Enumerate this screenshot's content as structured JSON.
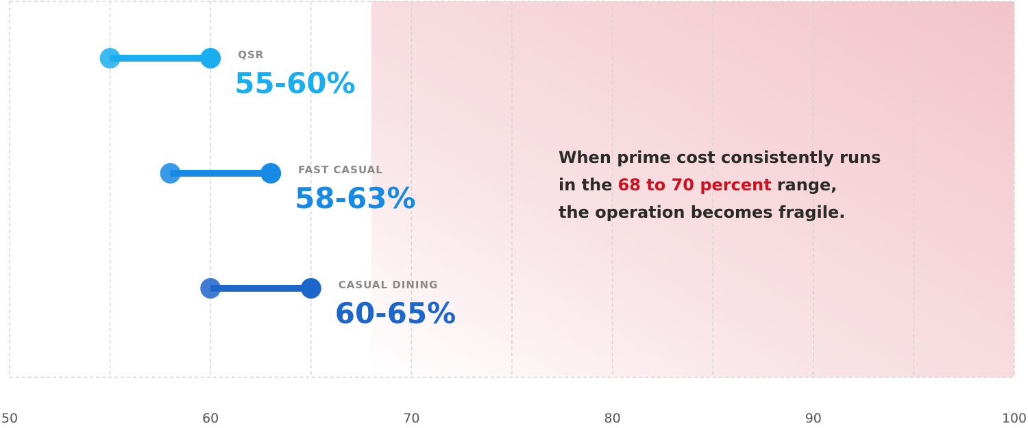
{
  "chart_data": {
    "type": "dumbbell",
    "categories": [
      "QSR",
      "FAST CASUAL",
      "CASUAL DINING"
    ],
    "low": [
      55,
      58,
      60
    ],
    "high": [
      60,
      63,
      65
    ],
    "value_labels": [
      "55-60%",
      "58-63%",
      "60-65%"
    ],
    "colors": [
      "#1aaef0",
      "#168ae4",
      "#1d66cc"
    ],
    "xlim": [
      50,
      100
    ],
    "xticks": [
      50,
      60,
      70,
      80,
      90,
      100
    ],
    "xminorticks": [
      55,
      65,
      75,
      85,
      95
    ],
    "grid": true,
    "highlight_range": [
      68,
      100
    ],
    "highlight_color": "#f2c4cb",
    "annotation": {
      "lines": [
        [
          "When prime cost consistently runs"
        ],
        [
          "in the",
          "68 to 70 percent",
          "range,"
        ],
        [
          "the operation becomes fragile."
        ]
      ],
      "highlight_color": "#d0101e"
    }
  }
}
